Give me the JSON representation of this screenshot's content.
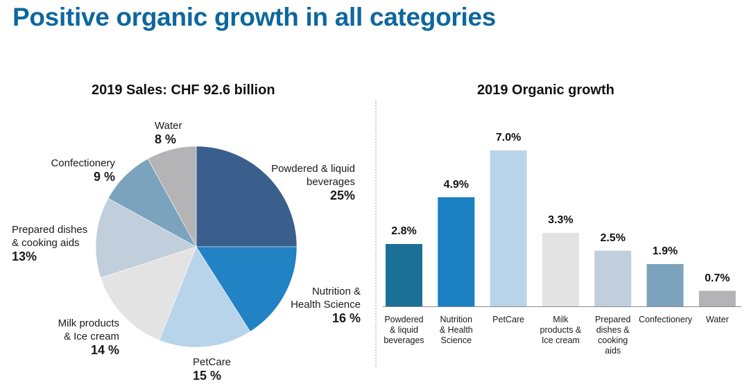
{
  "page": {
    "title": "Positive organic growth in all categories"
  },
  "chart_data": [
    {
      "type": "pie",
      "title": "2019 Sales: CHF 92.6 billion",
      "start": "12-o'clock, clockwise",
      "slices": [
        {
          "label": "Powdered & liquid beverages",
          "value": 25,
          "display": "25%",
          "color": "#3a5f8c"
        },
        {
          "label": "Nutrition & Health Science",
          "value": 16,
          "display": "16 %",
          "color": "#2182c4"
        },
        {
          "label": "PetCare",
          "value": 15,
          "display": "15 %",
          "color": "#b8d4ea"
        },
        {
          "label": "Milk products & Ice cream",
          "value": 14,
          "display": "14 %",
          "color": "#e3e3e4"
        },
        {
          "label": "Prepared dishes & cooking aids",
          "value": 13,
          "display": "13%",
          "color": "#c0cfdb"
        },
        {
          "label": "Confectionery",
          "value": 9,
          "display": "9 %",
          "color": "#7ba3bd"
        },
        {
          "label": "Water",
          "value": 8,
          "display": "8 %",
          "color": "#b4b4b6"
        }
      ],
      "pie_labels": {
        "powdered": {
          "name_1": "Powdered & liquid",
          "name_2": "beverages"
        },
        "nutrition": {
          "name_1": "Nutrition &",
          "name_2": "Health Science"
        },
        "petcare": {
          "name_1": "PetCare"
        },
        "milk": {
          "name_1": "Milk products",
          "name_2": "& Ice cream"
        },
        "prepared": {
          "name_1": "Prepared dishes",
          "name_2": "& cooking aids"
        },
        "confectionery": {
          "name_1": "Confectionery"
        },
        "water": {
          "name_1": "Water"
        }
      }
    },
    {
      "type": "bar",
      "title": "2019 Organic growth",
      "categories": [
        "Powdered\n& liquid\nbeverages",
        "Nutrition\n& Health\nScience",
        "PetCare",
        "Milk\nproducts &\nIce cream",
        "Prepared\ndishes &\ncooking\naids",
        "Confectionery",
        "Water"
      ],
      "values": [
        2.8,
        4.9,
        7.0,
        3.3,
        2.5,
        1.9,
        0.7
      ],
      "value_labels": [
        "2.8%",
        "4.9%",
        "7.0%",
        "3.3%",
        "2.5%",
        "1.9%",
        "0.7%"
      ],
      "colors": [
        "#1a7095",
        "#1a80c2",
        "#b8d4ea",
        "#e3e3e4",
        "#c0cfdb",
        "#7ba3bd",
        "#b4b4b6"
      ],
      "ylim": [
        0,
        7.0
      ],
      "xlabel": "",
      "ylabel": "",
      "grid": false,
      "legend": "none"
    }
  ]
}
